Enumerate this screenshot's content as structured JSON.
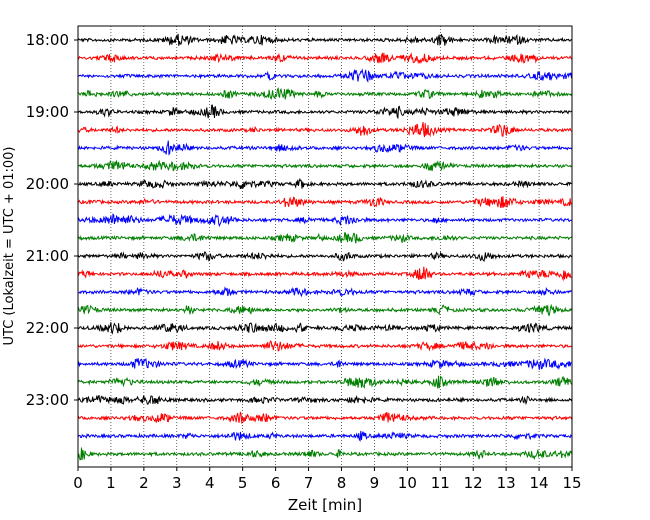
{
  "chart_data": {
    "type": "line",
    "title": "",
    "xlabel": "Zeit  [min]",
    "ylabel": "UTC (Lokalzeit = UTC + 01:00)",
    "xlim": [
      0,
      15
    ],
    "x_ticks": [
      "0",
      "1",
      "2",
      "3",
      "4",
      "5",
      "6",
      "7",
      "8",
      "9",
      "10",
      "11",
      "12",
      "13",
      "14",
      "15"
    ],
    "y_tick_labels": [
      "18:00",
      "19:00",
      "20:00",
      "21:00",
      "22:00",
      "23:00"
    ],
    "grid": "vertical dotted at each minute",
    "trace_interval_minutes": 15,
    "trace_colors_cycle": [
      "#000000",
      "#ff0000",
      "#0000ff",
      "#007f00"
    ],
    "series": [
      {
        "start": "18:00",
        "color": "#000000"
      },
      {
        "start": "18:15",
        "color": "#ff0000"
      },
      {
        "start": "18:30",
        "color": "#0000ff"
      },
      {
        "start": "18:45",
        "color": "#007f00"
      },
      {
        "start": "19:00",
        "color": "#000000"
      },
      {
        "start": "19:15",
        "color": "#ff0000"
      },
      {
        "start": "19:30",
        "color": "#0000ff"
      },
      {
        "start": "19:45",
        "color": "#007f00"
      },
      {
        "start": "20:00",
        "color": "#000000"
      },
      {
        "start": "20:15",
        "color": "#ff0000"
      },
      {
        "start": "20:30",
        "color": "#0000ff"
      },
      {
        "start": "20:45",
        "color": "#007f00"
      },
      {
        "start": "21:00",
        "color": "#000000"
      },
      {
        "start": "21:15",
        "color": "#ff0000"
      },
      {
        "start": "21:30",
        "color": "#0000ff"
      },
      {
        "start": "21:45",
        "color": "#007f00"
      },
      {
        "start": "22:00",
        "color": "#000000"
      },
      {
        "start": "22:15",
        "color": "#ff0000"
      },
      {
        "start": "22:30",
        "color": "#0000ff"
      },
      {
        "start": "22:45",
        "color": "#007f00"
      },
      {
        "start": "23:00",
        "color": "#000000"
      },
      {
        "start": "23:15",
        "color": "#ff0000"
      },
      {
        "start": "23:30",
        "color": "#0000ff"
      },
      {
        "start": "23:45",
        "color": "#007f00"
      }
    ]
  }
}
